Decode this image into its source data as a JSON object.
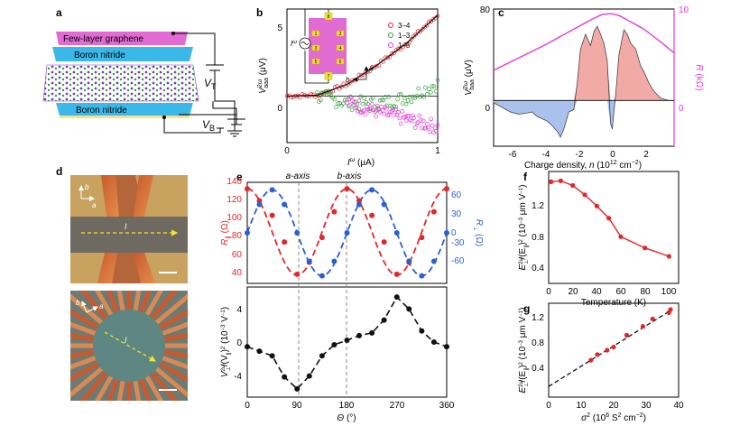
{
  "panels": {
    "a": {
      "label": "a",
      "text": {
        "graphene": "Few-layer graphene",
        "bn_top": "Boron nitride",
        "bn_bottom": "Boron nitride",
        "vt": "V",
        "vt_sub": "T",
        "vb": "V",
        "vb_sub": "B"
      }
    },
    "b": {
      "label": "b"
    },
    "c": {
      "label": "c"
    },
    "d": {
      "label": "d",
      "text": {
        "b_axis": "b",
        "a_axis": "a",
        "current": "I",
        "b_axis2": "b",
        "a_axis2": "a",
        "current2": "I"
      }
    },
    "e": {
      "label": "e",
      "a_axis_label": "a-axis",
      "b_axis_label": "b-axis"
    },
    "f": {
      "label": "f"
    },
    "g": {
      "label": "g"
    }
  },
  "colors": {
    "red": "#e3262b",
    "blue": "#2a5fd6",
    "magenta": "#e23ad9",
    "green": "#3aa03a",
    "pink_fill": "#f2aaa6",
    "blue_fill": "#a9c1ec"
  },
  "chart_data": [
    {
      "id": "b",
      "type": "scatter",
      "xlabel": "I^ω (μA)",
      "xlabel_main": "I",
      "xlabel_sup": "ω",
      "xlabel_unit": " (μA)",
      "ylabel": "V_aaa^2ω (μV)",
      "ylabel_main": "V",
      "ylabel_sup": "2ω",
      "ylabel_sub": "aaa",
      "ylabel_unit": " (μV)",
      "xlim": [
        0,
        1
      ],
      "ylim": [
        -3,
        5.6
      ],
      "xticks": [
        "0",
        "1"
      ],
      "yticks": [
        "0",
        "5"
      ],
      "legend": [
        "3–4",
        "1–3",
        "1–5"
      ],
      "series": [
        {
          "name": "3–4",
          "color": "#e3262b",
          "fit": "parabola",
          "curve_x": [
            0,
            0.2,
            0.4,
            0.6,
            0.8,
            1.0
          ],
          "curve_y": [
            0,
            0.05,
            0.75,
            2.0,
            3.45,
            5.2
          ]
        },
        {
          "name": "1–3",
          "color": "#3aa03a",
          "trend_x": [
            0.2,
            0.4,
            0.6,
            0.8,
            1.0
          ],
          "trend_y": [
            0,
            -0.45,
            -0.5,
            -0.1,
            0.8
          ]
        },
        {
          "name": "1–5",
          "color": "#e23ad9",
          "trend_x": [
            0.4,
            0.6,
            0.8,
            1.0
          ],
          "trend_y": [
            -0.4,
            -1.0,
            -1.5,
            -2.0
          ]
        }
      ],
      "inset": {
        "current_label": "I^ω",
        "current_main": "I",
        "current_sup": "ω",
        "a": "a",
        "b": "b",
        "contacts": [
          "1",
          "2",
          "3",
          "4",
          "5",
          "6",
          "7",
          "8"
        ]
      }
    },
    {
      "id": "c",
      "type": "area",
      "xlabel": "Charge density, n (10^12 cm^-2)",
      "xlabel_main": "Charge density, ",
      "xlabel_n": "n",
      "xlabel_unit": " (10",
      "xlabel_exp": "12",
      "xlabel_tail": " cm",
      "xlabel_exp2": "−2",
      "xlabel_close": ")",
      "ylabel": "V_baa^2ω (μV)",
      "ylabel_main": "V",
      "ylabel_sup": "2ω",
      "ylabel_sub": "baa",
      "ylabel_unit": " (μV)",
      "ylabel_right": "R (kΩ)",
      "ylabel_right_main": "R",
      "ylabel_right_unit": " (kΩ)",
      "xlim": [
        -7,
        3.8
      ],
      "ylim": [
        -40,
        80
      ],
      "ylim_right": [
        0,
        10
      ],
      "xticks": [
        "-6",
        "-4",
        "-2",
        "0",
        "2"
      ],
      "yticks": [
        "0",
        "80"
      ],
      "yticks_right": [
        "0",
        "10"
      ],
      "V_x": [
        -7,
        -6.5,
        -6,
        -5.5,
        -5,
        -4.7,
        -4.4,
        -4.1,
        -3.8,
        -3.5,
        -3.2,
        -3.0,
        -2.8,
        -2.5,
        -2.2,
        -2.0,
        -1.8,
        -1.5,
        -1.2,
        -1.0,
        -0.8,
        -0.6,
        -0.4,
        -0.2,
        0,
        0.1,
        0.2,
        0.3,
        0.5,
        0.8,
        1.0,
        1.2,
        1.5,
        1.8,
        2.0,
        2.3,
        2.6,
        3.0,
        3.5,
        3.8
      ],
      "V_y": [
        -2,
        -6,
        -10,
        -12,
        -11,
        -10,
        -14,
        -16,
        -18,
        -22,
        -27,
        -32,
        -25,
        -10,
        -8,
        15,
        45,
        58,
        48,
        60,
        65,
        58,
        50,
        35,
        -20,
        -25,
        -10,
        5,
        40,
        62,
        58,
        50,
        45,
        30,
        25,
        15,
        8,
        2,
        0,
        0
      ],
      "R_x": [
        -7,
        -6,
        -5,
        -4,
        -3,
        -2,
        -1,
        -0.5,
        0,
        0.5,
        1,
        2,
        3,
        3.8
      ],
      "R_y": [
        3.3,
        4.2,
        5.1,
        6.0,
        7.0,
        8.0,
        9.0,
        9.4,
        9.5,
        9.3,
        8.8,
        7.8,
        6.4,
        5.2
      ]
    },
    {
      "id": "e_top",
      "type": "scatter",
      "ylabel_left": "R_∥ (Ω)",
      "ylabel_left_main": "R",
      "ylabel_left_sub": "∥",
      "ylabel_left_unit": " (Ω)",
      "ylabel_right": "R_⊥ (Ω)",
      "ylabel_right_main": "R",
      "ylabel_right_sub": "⊥",
      "ylabel_right_unit": " (Ω)",
      "xlim": [
        0,
        360
      ],
      "ylim_left": [
        30,
        140
      ],
      "ylim_right": [
        -80,
        80
      ],
      "yticks_left": [
        "40",
        "60",
        "80",
        "100",
        "120",
        "140"
      ],
      "yticks_right": [
        "-60",
        "-30",
        "0",
        "30",
        "60"
      ],
      "series": [
        {
          "name": "R_∥",
          "color": "#e3262b",
          "x": [
            0,
            22,
            45,
            67,
            90,
            112,
            135,
            157,
            180,
            202,
            225,
            247,
            270,
            292,
            315,
            337,
            360
          ],
          "y": [
            133,
            120,
            104,
            75,
            40,
            53,
            80,
            108,
            133,
            120,
            104,
            75,
            40,
            53,
            80,
            108,
            133
          ]
        },
        {
          "name": "R_⊥",
          "color": "#2a5fd6",
          "x": [
            0,
            22,
            45,
            67,
            90,
            112,
            135,
            157,
            180,
            202,
            225,
            247,
            270,
            292,
            315,
            337,
            360
          ],
          "y": [
            0,
            45,
            68,
            45,
            0,
            -45,
            -68,
            -45,
            0,
            45,
            68,
            45,
            0,
            -45,
            -68,
            -45,
            0
          ]
        }
      ]
    },
    {
      "id": "e_bottom",
      "type": "scatter",
      "xlabel": "θ (°)",
      "xlabel_main": "Θ",
      "xlabel_unit": " (°)",
      "ylabel": "V_⊥^2ω/(V_∥)^2 (10^-3 V^-1)",
      "ylabel_main": "V",
      "ylabel_sup": "2ω",
      "ylabel_sub": "⊥",
      "ylabel_mid": "/(V",
      "ylabel_sub2": "∥",
      "ylabel_mid2": ")",
      "ylabel_sup2": "2",
      "ylabel_unit": " (10",
      "ylabel_exp": "−3",
      "ylabel_tail": " V",
      "ylabel_exp2": "−1",
      "ylabel_close": ")",
      "xlim": [
        0,
        360
      ],
      "ylim": [
        -6,
        6
      ],
      "xticks": [
        "0",
        "90",
        "180",
        "270",
        "360"
      ],
      "yticks": [
        "-4",
        "0",
        "4"
      ],
      "x": [
        0,
        22,
        45,
        67,
        90,
        112,
        135,
        157,
        180,
        202,
        225,
        247,
        270,
        292,
        315,
        337,
        360
      ],
      "y": [
        -0.5,
        -1.0,
        -1.5,
        -3.8,
        -5.1,
        -3.7,
        -1.5,
        -0.3,
        0.2,
        0.7,
        1.0,
        2.4,
        4.9,
        3.6,
        1.2,
        0.0,
        -0.5
      ]
    },
    {
      "id": "f",
      "type": "line",
      "xlabel": "Temperature (K)",
      "ylabel": "E_⊥^2ω/(E_∥)^2 (10^-3 μm V^-1)",
      "ylabel_main": "E",
      "ylabel_sup": "2ω",
      "ylabel_sub": "⊥",
      "ylabel_mid": "/(E",
      "ylabel_sub2": "∥",
      "ylabel_mid2": ")",
      "ylabel_sup2": "2",
      "ylabel_unit": " (10",
      "ylabel_exp": "−3",
      "ylabel_tail": " μm V",
      "ylabel_exp2": "−1",
      "ylabel_close": ")",
      "xlim": [
        0,
        108
      ],
      "ylim": [
        0.3,
        1.5
      ],
      "xticks": [
        "0",
        "20",
        "40",
        "60",
        "80",
        "100"
      ],
      "yticks": [
        "0.4",
        "0.8",
        "1.2"
      ],
      "x": [
        2,
        10,
        20,
        30,
        40,
        50,
        60,
        80,
        100
      ],
      "y": [
        1.39,
        1.4,
        1.35,
        1.25,
        1.13,
        1.0,
        0.8,
        0.68,
        0.59
      ]
    },
    {
      "id": "g",
      "type": "scatter",
      "xlabel": "σ^2 (10^6 S^2 cm^-2)",
      "xlabel_main": "σ",
      "xlabel_sup": "2",
      "xlabel_unit": " (10",
      "xlabel_exp": "6",
      "xlabel_tail": " S",
      "xlabel_exp2": "2",
      "xlabel_tail2": " cm",
      "xlabel_exp3": "−2",
      "xlabel_close": ")",
      "ylabel": "E_⊥^2ω/(E_∥)^2 (10^-3 μm V^-1)",
      "ylabel_main": "E",
      "ylabel_sup": "2ω",
      "ylabel_sub": "⊥",
      "ylabel_mid": "/(E",
      "ylabel_sub2": "∥",
      "ylabel_mid2": ")",
      "ylabel_sup2": "2",
      "ylabel_unit": " (10",
      "ylabel_exp": "−3",
      "ylabel_tail": " μm V",
      "ylabel_exp2": "−1",
      "ylabel_close": ")",
      "xlim": [
        0,
        40
      ],
      "ylim": [
        0,
        1.5
      ],
      "xticks": [
        "0",
        "10",
        "20",
        "30",
        "40"
      ],
      "yticks": [
        "0.4",
        "0.8",
        "1.2"
      ],
      "x": [
        13,
        15,
        18,
        20,
        24,
        29,
        32,
        37,
        37.5
      ],
      "y": [
        0.59,
        0.68,
        0.75,
        0.8,
        0.99,
        1.13,
        1.25,
        1.35,
        1.4
      ],
      "fit_x": [
        0,
        38
      ],
      "fit_y": [
        0.17,
        1.4
      ]
    }
  ]
}
